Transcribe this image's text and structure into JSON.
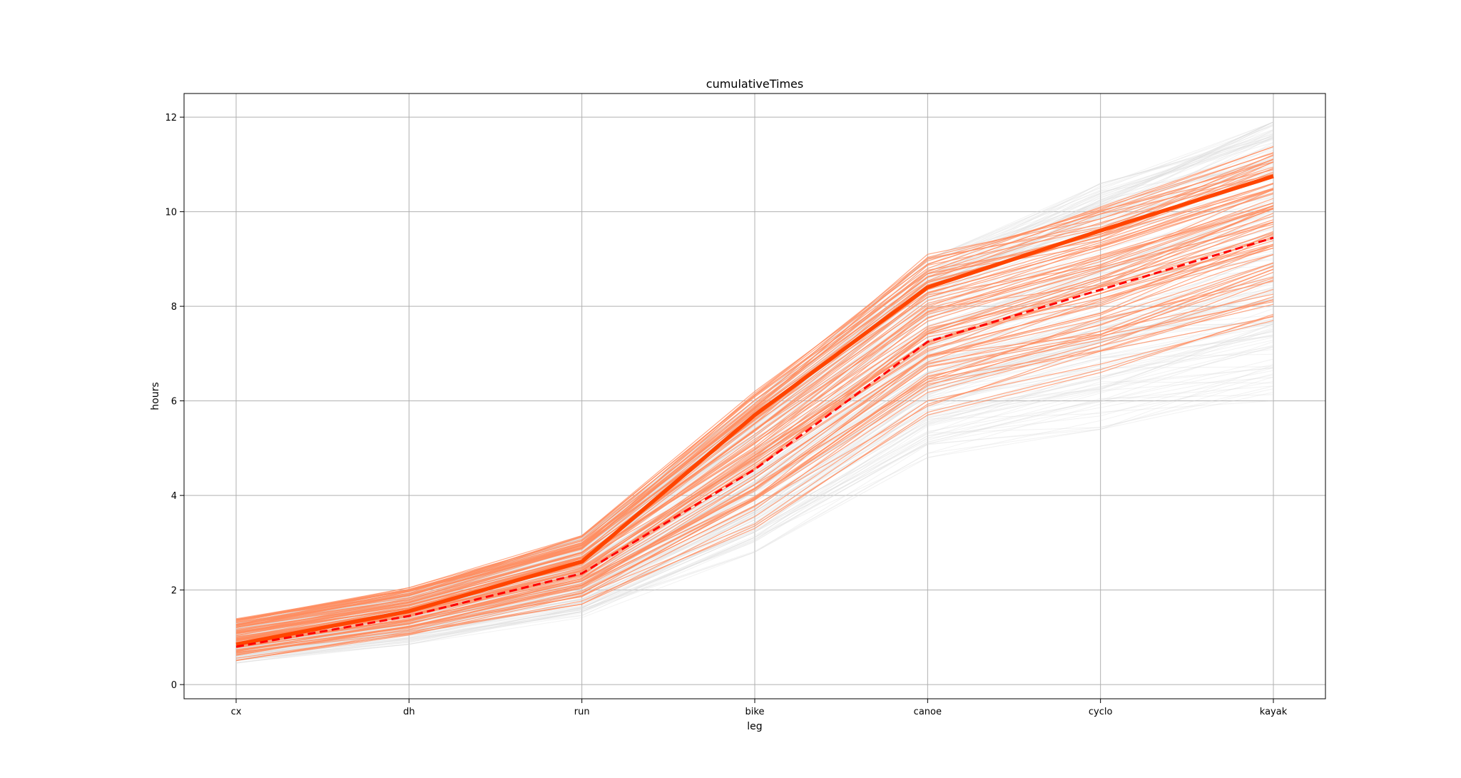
{
  "chart_data": {
    "type": "line",
    "title": "cumulativeTimes",
    "xlabel": "leg",
    "ylabel": "hours",
    "categories": [
      "cx",
      "dh",
      "run",
      "bike",
      "canoe",
      "cyclo",
      "kayak"
    ],
    "ylim": [
      -0.3,
      12.5
    ],
    "yticks": [
      0,
      2,
      4,
      6,
      8,
      10,
      12
    ],
    "grid": true,
    "colors": {
      "background_lines": "#d9d9d9",
      "highlight_lines": "#ff8c5f",
      "main_line": "#ff4500",
      "dashed_line": "#ff0000",
      "grid": "#b0b0b0"
    },
    "series": [
      {
        "style": "bold",
        "values": [
          0.85,
          1.55,
          2.6,
          5.7,
          8.4,
          9.6,
          10.75
        ]
      },
      {
        "style": "dashed",
        "values": [
          0.8,
          1.45,
          2.35,
          4.55,
          7.25,
          8.35,
          9.45
        ]
      }
    ],
    "bands": {
      "background": {
        "min": [
          0.45,
          0.85,
          1.4,
          2.8,
          4.8,
          5.4,
          6.0
        ],
        "max": [
          1.3,
          2.0,
          3.1,
          6.0,
          9.0,
          10.6,
          11.9
        ]
      },
      "highlight": {
        "min": [
          0.5,
          1.0,
          1.7,
          3.3,
          5.7,
          6.6,
          7.7
        ],
        "max": [
          1.4,
          2.05,
          3.15,
          6.2,
          9.1,
          10.1,
          11.4
        ]
      }
    }
  }
}
